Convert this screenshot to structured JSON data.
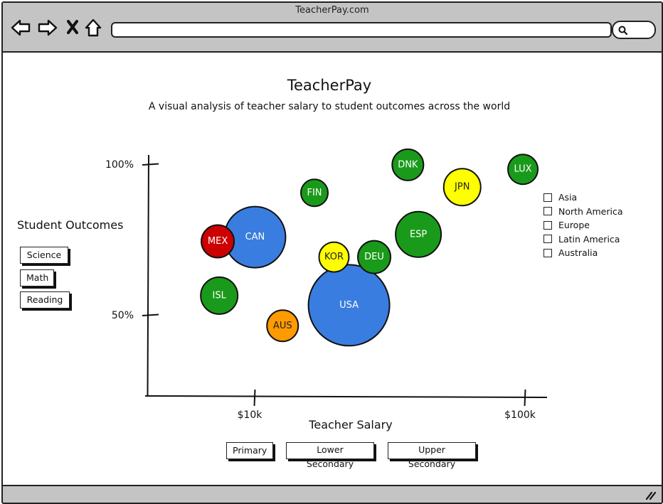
{
  "browser": {
    "site_title": "TeacherPay.com"
  },
  "page": {
    "title": "TeacherPay",
    "subtitle": "A visual analysis of teacher salary to student outcomes across the world"
  },
  "outcomes": {
    "label": "Student Outcomes",
    "buttons": [
      "Science",
      "Math",
      "Reading"
    ]
  },
  "salary_levels": {
    "buttons": [
      "Primary",
      "Lower Secondary",
      "Upper Secondary"
    ]
  },
  "legend": {
    "items": [
      "Asia",
      "North America",
      "Europe",
      "Latin America",
      "Australia"
    ]
  },
  "colors": {
    "asia": "#ffff00",
    "north_america": "#3a7de0",
    "europe": "#1a9a1a",
    "latin_america": "#cc0000",
    "australia": "#ff9a00"
  },
  "chart_data": {
    "type": "scatter",
    "xlabel": "Teacher Salary",
    "ylabel": "Student Outcomes",
    "x_ticks": [
      {
        "label": "$10k",
        "value": 10
      },
      {
        "label": "$100k",
        "value": 100
      }
    ],
    "y_ticks": [
      {
        "label": "100%",
        "value": 100
      },
      {
        "label": "50%",
        "value": 50
      }
    ],
    "points": [
      {
        "label": "CAN",
        "region": "North America",
        "color": "#3a7de0",
        "label_color": "#ffffff",
        "x": 10.1,
        "y": 75.8,
        "size": 43
      },
      {
        "label": "USA",
        "region": "North America",
        "color": "#3a7de0",
        "label_color": "#ffffff",
        "x": 41.4,
        "y": 53.2,
        "size": 57
      },
      {
        "label": "MEX",
        "region": "Latin America",
        "color": "#cc0000",
        "label_color": "#ffffff",
        "x": -2.3,
        "y": 74.4,
        "size": 23
      },
      {
        "label": "FIN",
        "region": "Europe",
        "color": "#1a9a1a",
        "label_color": "#ffffff",
        "x": 29.9,
        "y": 90.5,
        "size": 19
      },
      {
        "label": "DNK",
        "region": "Europe",
        "color": "#1a9a1a",
        "label_color": "#ffffff",
        "x": 61.0,
        "y": 99.8,
        "size": 22
      },
      {
        "label": "LUX",
        "region": "Europe",
        "color": "#1a9a1a",
        "label_color": "#ffffff",
        "x": 99.3,
        "y": 98.3,
        "size": 21
      },
      {
        "label": "ESP",
        "region": "Europe",
        "color": "#1a9a1a",
        "label_color": "#ffffff",
        "x": 64.5,
        "y": 76.7,
        "size": 32
      },
      {
        "label": "DEU",
        "region": "Europe",
        "color": "#1a9a1a",
        "label_color": "#ffffff",
        "x": 49.8,
        "y": 69.2,
        "size": 23
      },
      {
        "label": "ISL",
        "region": "Europe",
        "color": "#1a9a1a",
        "label_color": "#ffffff",
        "x": -1.8,
        "y": 56.4,
        "size": 26
      },
      {
        "label": "JPN",
        "region": "Asia",
        "color": "#ffff00",
        "label_color": "#222222",
        "x": 79.1,
        "y": 92.4,
        "size": 26
      },
      {
        "label": "KOR",
        "region": "Asia",
        "color": "#ffff00",
        "label_color": "#222222",
        "x": 36.4,
        "y": 69.2,
        "size": 21
      },
      {
        "label": "AUS",
        "region": "Australia",
        "color": "#ff9a00",
        "label_color": "#222222",
        "x": 19.3,
        "y": 46.4,
        "size": 22
      }
    ]
  }
}
